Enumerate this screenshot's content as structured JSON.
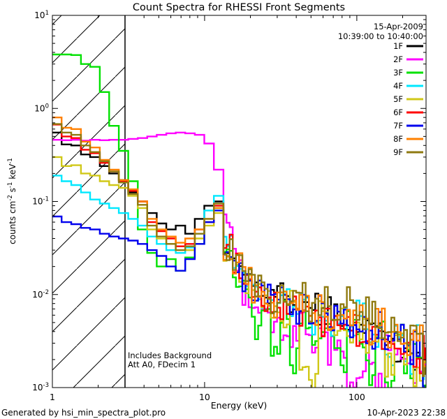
{
  "title": "Count Spectra for RHESSI Front Segments",
  "header": {
    "date_line1": "15-Apr-2009",
    "date_line2": "10:39:00 to 10:40:00"
  },
  "annotations": {
    "line1": "Includes Background",
    "line2": "Att A0, FDecim 1"
  },
  "footer": {
    "left": "Generated by hsi_min_spectra_plot.pro",
    "right": "10-Apr-2023 22:38"
  },
  "colors": {
    "background": "#ffffff",
    "axis": "#000000"
  },
  "axes": {
    "x_label": "Energy (keV)",
    "x_ticks": [
      1,
      10,
      100
    ],
    "x_range": [
      1,
      285
    ],
    "y_tick_exponents": [
      1,
      0,
      -1,
      -2,
      -3
    ],
    "y_range_exp": [
      -3,
      1
    ],
    "y_label_parts": [
      {
        "t": "counts cm"
      },
      {
        "t": "-2",
        "sup": true
      },
      {
        "t": " s"
      },
      {
        "t": "-1",
        "sup": true
      },
      {
        "t": " keV"
      },
      {
        "t": "-1",
        "sup": true
      }
    ]
  },
  "restricted_region": {
    "from_keV": 1,
    "to_keV": 3,
    "style": "hatched"
  },
  "chart_data": {
    "type": "line",
    "x_scale": "log",
    "y_scale": "log",
    "x_unit": "keV",
    "y_unit": "counts cm^-2 s^-1 keV^-1",
    "noise_dex": 0.16,
    "noise_above_keV": 13,
    "x": [
      1.0,
      1.15,
      1.33,
      1.54,
      1.77,
      2.05,
      2.36,
      2.73,
      3.15,
      3.64,
      4.2,
      4.85,
      5.6,
      6.46,
      7.46,
      8.62,
      9.95,
      11.5,
      13.3,
      15.3,
      17.7,
      20.4,
      23.6,
      27.2,
      31.4,
      36.3,
      41.9,
      48.4,
      55.9,
      64.5,
      74.5,
      86.0,
      99.3,
      114.7,
      132.4,
      152.9,
      176.6,
      203.9,
      235.4,
      271.8
    ],
    "series": [
      {
        "name": "1F",
        "color": "#000000",
        "values": [
          0.55,
          0.41,
          0.4,
          0.32,
          0.3,
          0.24,
          0.2,
          0.17,
          0.125,
          0.1,
          0.075,
          0.058,
          0.05,
          0.055,
          0.045,
          0.065,
          0.09,
          0.1,
          0.035,
          0.022,
          0.016,
          0.012,
          0.01,
          0.009,
          0.012,
          0.008,
          0.007,
          0.009,
          0.006,
          0.0075,
          0.005,
          0.006,
          0.0045,
          0.005,
          0.0035,
          0.004,
          0.0025,
          0.003,
          0.002,
          0.0022
        ]
      },
      {
        "name": "2F",
        "color": "#ff00ff",
        "values": [
          0.46,
          0.455,
          0.46,
          0.45,
          0.46,
          0.455,
          0.46,
          0.46,
          0.47,
          0.48,
          0.5,
          0.52,
          0.54,
          0.55,
          0.54,
          0.52,
          0.42,
          0.22,
          0.07,
          0.022,
          0.009,
          0.006,
          0.005,
          0.0045,
          0.004,
          0.0035,
          0.0045,
          0.003,
          0.0035,
          0.0025,
          0.003,
          0.0012,
          0.0011,
          0.0025,
          0.0011,
          0.003,
          0.0022,
          0.0025,
          0.0015,
          0.002
        ]
      },
      {
        "name": "3F",
        "color": "#00e100",
        "values": [
          3.8,
          3.8,
          3.75,
          3.0,
          2.8,
          1.5,
          0.65,
          0.35,
          0.165,
          0.05,
          0.028,
          0.02,
          0.024,
          0.018,
          0.025,
          0.035,
          0.06,
          0.085,
          0.025,
          0.015,
          0.01,
          0.004,
          0.009,
          0.0025,
          0.007,
          0.002,
          0.0055,
          0.004,
          0.0045,
          0.0035,
          0.002,
          0.005,
          0.0035,
          0.0015,
          0.0045,
          0.0012,
          0.0035,
          0.0018,
          0.0028,
          0.0012
        ]
      },
      {
        "name": "4F",
        "color": "#00e8ff",
        "values": [
          0.19,
          0.165,
          0.15,
          0.125,
          0.105,
          0.095,
          0.085,
          0.075,
          0.065,
          0.055,
          0.042,
          0.035,
          0.03,
          0.028,
          0.032,
          0.045,
          0.08,
          0.115,
          0.03,
          0.018,
          0.013,
          0.01,
          0.008,
          0.007,
          0.009,
          0.006,
          0.0075,
          0.005,
          0.0065,
          0.0045,
          0.0055,
          0.004,
          0.0065,
          0.003,
          0.0035,
          0.0025,
          0.004,
          0.002,
          0.0035,
          0.0015
        ]
      },
      {
        "name": "5F",
        "color": "#d0c818",
        "values": [
          0.3,
          0.24,
          0.245,
          0.2,
          0.19,
          0.165,
          0.15,
          0.14,
          0.115,
          0.085,
          0.05,
          0.04,
          0.035,
          0.03,
          0.03,
          0.04,
          0.055,
          0.075,
          0.028,
          0.018,
          0.013,
          0.01,
          0.0085,
          0.007,
          0.0045,
          0.008,
          0.0015,
          0.0012,
          0.006,
          0.004,
          0.0055,
          0.0035,
          0.0045,
          0.0025,
          0.004,
          0.0018,
          0.003,
          0.0025,
          0.0012,
          0.002
        ]
      },
      {
        "name": "6F",
        "color": "#ff0000",
        "values": [
          0.67,
          0.5,
          0.48,
          0.36,
          0.33,
          0.26,
          0.21,
          0.165,
          0.13,
          0.1,
          0.06,
          0.048,
          0.04,
          0.033,
          0.035,
          0.05,
          0.06,
          0.09,
          0.032,
          0.02,
          0.014,
          0.011,
          0.009,
          0.0075,
          0.0065,
          0.009,
          0.006,
          0.007,
          0.005,
          0.006,
          0.0045,
          0.0055,
          0.0035,
          0.0045,
          0.003,
          0.0035,
          0.0025,
          0.0028,
          0.0018,
          0.0025
        ]
      },
      {
        "name": "7F",
        "color": "#0000ee",
        "values": [
          0.069,
          0.06,
          0.057,
          0.052,
          0.05,
          0.045,
          0.042,
          0.04,
          0.038,
          0.035,
          0.03,
          0.026,
          0.02,
          0.018,
          0.024,
          0.035,
          0.06,
          0.08,
          0.03,
          0.019,
          0.014,
          0.011,
          0.0095,
          0.008,
          0.0095,
          0.007,
          0.0085,
          0.006,
          0.0075,
          0.0055,
          0.0065,
          0.0045,
          0.0055,
          0.0035,
          0.0045,
          0.003,
          0.0035,
          0.0022,
          0.003,
          0.0012
        ]
      },
      {
        "name": "8F",
        "color": "#ff8000",
        "values": [
          0.8,
          0.62,
          0.6,
          0.44,
          0.38,
          0.28,
          0.22,
          0.17,
          0.135,
          0.1,
          0.065,
          0.05,
          0.042,
          0.036,
          0.04,
          0.05,
          0.065,
          0.085,
          0.03,
          0.02,
          0.015,
          0.011,
          0.0095,
          0.008,
          0.0105,
          0.0075,
          0.009,
          0.0065,
          0.008,
          0.0055,
          0.0065,
          0.005,
          0.006,
          0.004,
          0.005,
          0.0032,
          0.0042,
          0.0025,
          0.0035,
          0.0018
        ]
      },
      {
        "name": "9F",
        "color": "#8f7a10",
        "values": [
          0.68,
          0.55,
          0.52,
          0.4,
          0.34,
          0.27,
          0.21,
          0.16,
          0.12,
          0.092,
          0.055,
          0.042,
          0.035,
          0.03,
          0.033,
          0.045,
          0.065,
          0.095,
          0.033,
          0.021,
          0.015,
          0.012,
          0.01,
          0.0085,
          0.011,
          0.008,
          0.0095,
          0.007,
          0.0085,
          0.006,
          0.007,
          0.0105,
          0.0045,
          0.0065,
          0.0035,
          0.005,
          0.0028,
          0.0038,
          0.0045,
          0.0015
        ]
      }
    ]
  }
}
